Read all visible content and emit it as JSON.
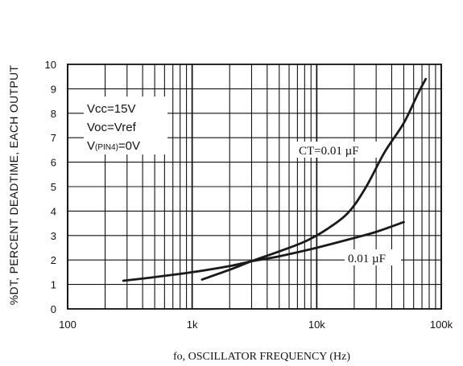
{
  "chart_data": {
    "type": "line",
    "title": "",
    "xlabel": "fo, OSCILLATOR FREQUENCY (Hz)",
    "ylabel": "%DT, PERCENT DEADTIME, EACH OUTPUT",
    "x_scale": "log",
    "xlim": [
      100,
      100000
    ],
    "ylim": [
      0,
      10
    ],
    "x_ticks": [
      "100",
      "1k",
      "10k",
      "100k"
    ],
    "y_ticks": [
      "0",
      "1",
      "2",
      "3",
      "4",
      "5",
      "6",
      "7",
      "8",
      "9",
      "10"
    ],
    "grid": true,
    "conditions": {
      "vcc": "Vcc=15V",
      "voc": "Voc=Vref",
      "pin4_prefix": "V",
      "pin4_sub": "(PIN4)",
      "pin4_suffix": "=0V"
    },
    "series": [
      {
        "name": "CT=0.01 µF",
        "color": "#1a1a1a",
        "x": [
          1200,
          2000,
          3000,
          5000,
          8000,
          12000,
          18000,
          25000,
          35000,
          50000,
          65000,
          75000
        ],
        "y": [
          1.2,
          1.6,
          1.95,
          2.35,
          2.75,
          3.25,
          3.95,
          5.0,
          6.4,
          7.6,
          8.8,
          9.4
        ]
      },
      {
        "name": "0.01 µF",
        "color": "#1a1a1a",
        "x": [
          280,
          500,
          1000,
          2000,
          3000,
          5000,
          10000,
          20000,
          30000,
          50000
        ],
        "y": [
          1.15,
          1.3,
          1.5,
          1.75,
          1.95,
          2.15,
          2.5,
          2.9,
          3.15,
          3.55
        ]
      }
    ]
  }
}
